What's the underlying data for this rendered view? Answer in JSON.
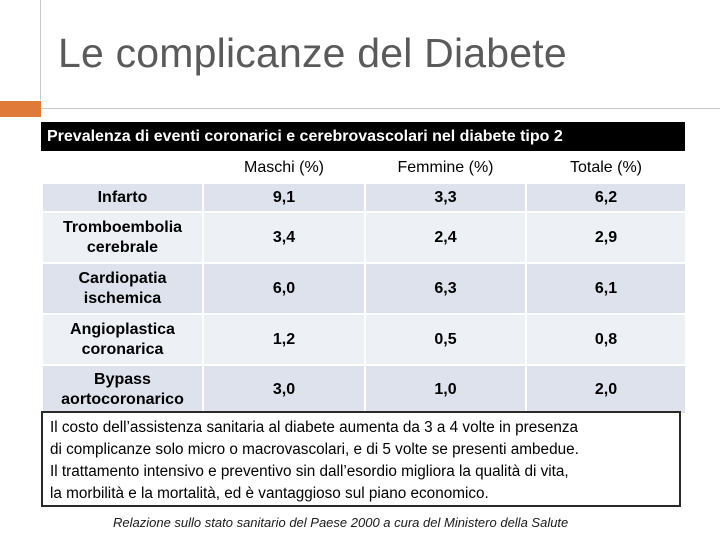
{
  "slide": {
    "title": "Le complicanze del Diabete"
  },
  "table": {
    "caption": "Prevalenza di eventi coronarici e cerebrovascolari nel diabete tipo 2",
    "headers": [
      "",
      "Maschi (%)",
      "Femmine (%)",
      "Totale (%)"
    ],
    "rows": [
      {
        "label": "Infarto",
        "values": [
          "9,1",
          "3,3",
          "6,2"
        ]
      },
      {
        "label": "Tromboembolia cerebrale",
        "values": [
          "3,4",
          "2,4",
          "2,9"
        ]
      },
      {
        "label": "Cardiopatia ischemica",
        "values": [
          "6,0",
          "6,3",
          "6,1"
        ]
      },
      {
        "label": "Angioplastica coronarica",
        "values": [
          "1,2",
          "0,5",
          "0,8"
        ]
      },
      {
        "label": "Bypass aortocoronarico",
        "values": [
          "3,0",
          "1,0",
          "2,0"
        ]
      }
    ]
  },
  "note": {
    "lines": [
      "Il costo dell’assistenza sanitaria al diabete aumenta da 3 a 4 volte in presenza",
      "di complicanze solo micro o macrovascolari, e di 5 volte se presenti ambedue.",
      "Il trattamento intensivo e preventivo sin dall’esordio migliora la qualità di vita,",
      "la morbilità e la mortalità, ed è vantaggioso sul piano economico."
    ]
  },
  "source": "Relazione sullo stato sanitario del Paese 2000 a cura del Ministero della Salute",
  "colors": {
    "accent": "#e07a38",
    "row_band": "#dde2ec",
    "row_plain": "#edf0f5",
    "caption_bg": "#000000"
  }
}
